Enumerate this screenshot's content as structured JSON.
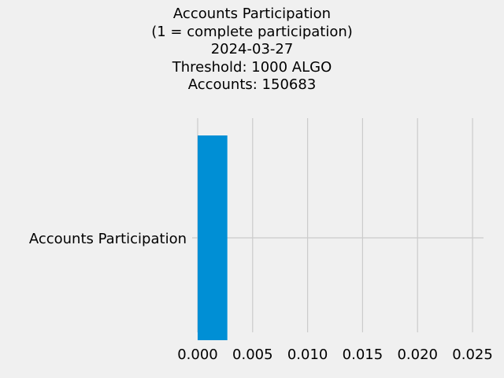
{
  "chart_data": {
    "type": "bar",
    "orientation": "horizontal",
    "title_lines": [
      "Accounts Participation",
      "(1 = complete participation)",
      "2024-03-27",
      "Threshold: 1000 ALGO",
      "Accounts: 150683"
    ],
    "categories": [
      "Accounts Participation"
    ],
    "values": [
      0.0027
    ],
    "xlim": [
      -0.0005,
      0.026
    ],
    "x_ticks": [
      0.0,
      0.005,
      0.01,
      0.015,
      0.02,
      0.025
    ],
    "x_tick_labels": [
      "0.000",
      "0.005",
      "0.010",
      "0.015",
      "0.020",
      "0.025"
    ],
    "grid": true,
    "bar_color": "#008fd5",
    "grid_color": "#cbcbcb"
  }
}
